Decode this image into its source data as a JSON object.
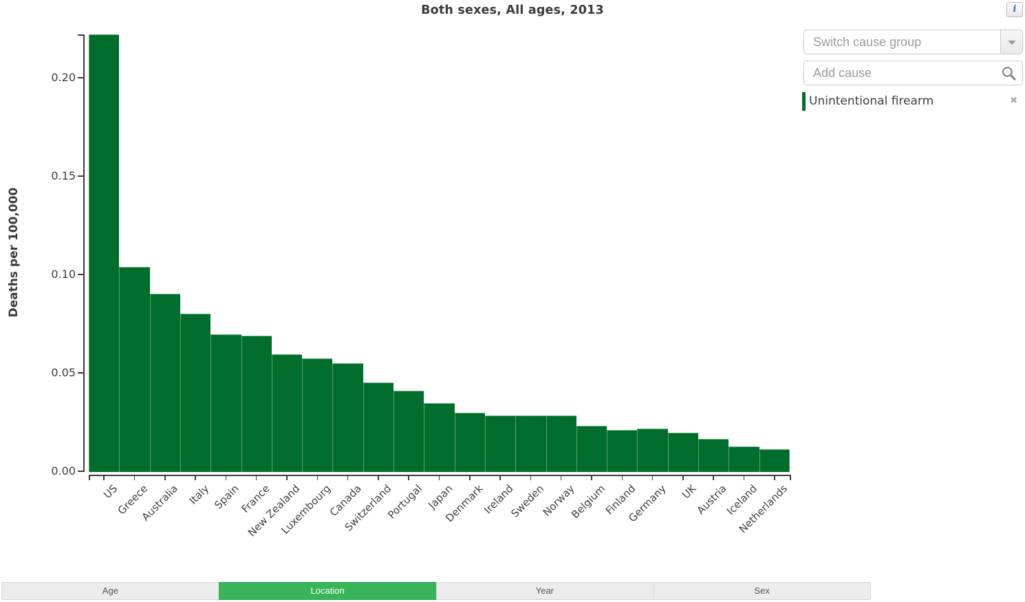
{
  "page": {
    "title": "Both sexes, All ages, 2013",
    "info_label": "i"
  },
  "cause_panel": {
    "switch_placeholder": "Switch cause group",
    "add_placeholder": "Add cause",
    "remove_glyph": "✖",
    "selected_causes": [
      {
        "label": "Unintentional firearm",
        "color": "#006d2c"
      }
    ]
  },
  "tabs": [
    {
      "label": "Age",
      "active": false
    },
    {
      "label": "Location",
      "active": true
    },
    {
      "label": "Year",
      "active": false
    },
    {
      "label": "Sex",
      "active": false
    }
  ],
  "chart_data": {
    "type": "bar",
    "title": "Both sexes, All ages, 2013",
    "ylabel": "Deaths per 100,000",
    "xlabel": "",
    "series_name": "Unintentional firearm",
    "categories": [
      "US",
      "Greece",
      "Australia",
      "Italy",
      "Spain",
      "France",
      "New Zealand",
      "Luxembourg",
      "Canada",
      "Switzerland",
      "Portugal",
      "Japan",
      "Denmark",
      "Ireland",
      "Sweden",
      "Norway",
      "Belgium",
      "Finland",
      "Germany",
      "UK",
      "Austria",
      "Iceland",
      "Netherlands"
    ],
    "values": [
      0.2224,
      0.1041,
      0.0905,
      0.0805,
      0.07,
      0.0691,
      0.0599,
      0.0577,
      0.0553,
      0.0455,
      0.0414,
      0.035,
      0.03,
      0.0287,
      0.0288,
      0.0285,
      0.0234,
      0.0213,
      0.022,
      0.0199,
      0.0167,
      0.013,
      0.0116
    ],
    "yticks": [
      0,
      0.05,
      0.1,
      0.15,
      0.2
    ],
    "ytick_labels": [
      "0.00",
      "0.05",
      "0.10",
      "0.15",
      "0.20"
    ],
    "ylim": [
      0,
      0.2224
    ],
    "grid": false,
    "bar_color": "#006d2c",
    "bar_edge_color": "#5aa46d",
    "legend_position": "right"
  },
  "colors": {
    "accent_green": "#38b559",
    "bar_green": "#006d2c",
    "axis": "#3a3a3a",
    "placeholder_gray": "#9b9b9b"
  }
}
